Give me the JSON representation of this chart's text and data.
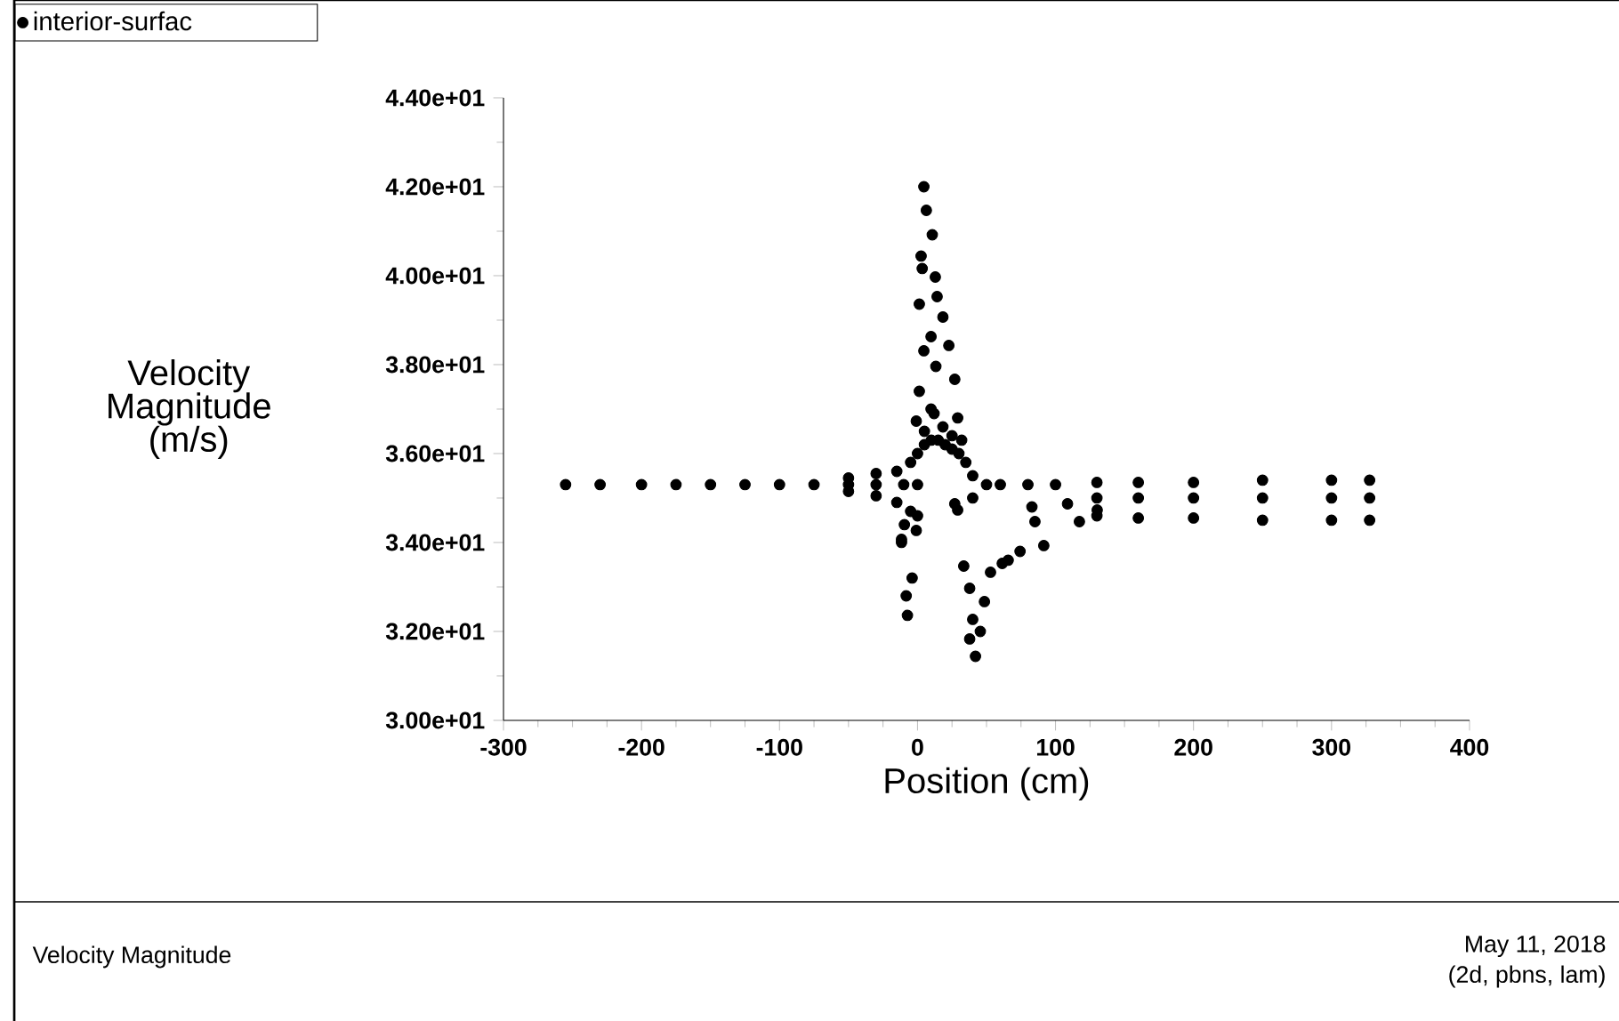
{
  "chart_data": {
    "type": "scatter",
    "xlabel": "Position (cm)",
    "ylabel": "Velocity Magnitude (m/s)",
    "annotations": [
      "Velocity Magnitude",
      "May 11, 2018",
      "(2d, pbns, lam)"
    ],
    "xlim": [
      -300,
      400
    ],
    "xticks": [
      -300,
      -200,
      -100,
      0,
      100,
      200,
      300,
      400
    ],
    "ylim": [
      30,
      44
    ],
    "yticks": [
      {
        "value": 30,
        "label": "3.00e+01"
      },
      {
        "value": 32,
        "label": "3.20e+01"
      },
      {
        "value": 34,
        "label": "3.40e+01"
      },
      {
        "value": 36,
        "label": "3.60e+01"
      },
      {
        "value": 38,
        "label": "3.80e+01"
      },
      {
        "value": 40,
        "label": "4.00e+01"
      },
      {
        "value": 42,
        "label": "4.20e+01"
      },
      {
        "value": 44,
        "label": "4.40e+01"
      }
    ],
    "grid": false,
    "legend": "top left",
    "marker": "circle",
    "series": [
      {
        "name": "interior-surfac",
        "color": "#000000",
        "x": [
          -255,
          -230,
          -200,
          -175,
          -150,
          -125,
          -100,
          -75,
          -50,
          -50,
          -50,
          -30,
          -30,
          -30,
          -15,
          -15,
          -10,
          -5,
          -5,
          0,
          0,
          0,
          5,
          10,
          15,
          20,
          25,
          30,
          35,
          40,
          40,
          50,
          60,
          80,
          100,
          130,
          160,
          200,
          250,
          300,
          327.6,
          130,
          160,
          200,
          250,
          300,
          327.6,
          130,
          160,
          200,
          250,
          300,
          327.6,
          4.6,
          6.4,
          10.7,
          2.6,
          3.4,
          12.9,
          14.2,
          1.3,
          18.4,
          9.8,
          4.6,
          22.7,
          13.3,
          1.3,
          27,
          9.8,
          29.1,
          -0.9,
          18.4,
          5,
          12,
          25,
          32,
          -9.5,
          -11.6,
          -0.9,
          -3.9,
          -8.2,
          -7.3,
          29.1,
          33.5,
          37.8,
          48.5,
          40,
          45.5,
          37.8,
          42,
          52.9,
          61.4,
          82.9,
          108.7,
          85.1,
          74.3,
          65.7,
          91.5,
          117.3,
          130.2,
          27,
          -11.6
        ],
        "values": [
          35.3,
          35.3,
          35.3,
          35.3,
          35.3,
          35.3,
          35.3,
          35.3,
          35.3,
          35.45,
          35.15,
          35.3,
          35.55,
          35.05,
          35.6,
          34.9,
          35.3,
          35.8,
          34.7,
          35.3,
          36.0,
          34.6,
          36.2,
          36.3,
          36.3,
          36.2,
          36.1,
          36.0,
          35.8,
          35.5,
          35.0,
          35.3,
          35.3,
          35.3,
          35.3,
          35.35,
          35.35,
          35.35,
          35.4,
          35.4,
          35.4,
          35.0,
          35.0,
          35.0,
          35.0,
          35.0,
          35.0,
          34.6,
          34.55,
          34.55,
          34.5,
          34.5,
          34.5,
          42.0,
          41.47,
          40.92,
          40.44,
          40.16,
          39.97,
          39.53,
          39.36,
          39.07,
          38.63,
          38.31,
          38.43,
          37.96,
          37.4,
          37.67,
          37.0,
          36.8,
          36.73,
          36.6,
          36.5,
          36.9,
          36.4,
          36.3,
          34.4,
          34.0,
          34.27,
          33.2,
          32.8,
          32.36,
          34.73,
          33.47,
          32.97,
          32.67,
          32.27,
          32.0,
          31.83,
          31.44,
          33.33,
          33.53,
          34.8,
          34.87,
          34.47,
          33.8,
          33.6,
          33.93,
          34.47,
          34.73,
          34.87,
          34.07
        ]
      }
    ]
  }
}
